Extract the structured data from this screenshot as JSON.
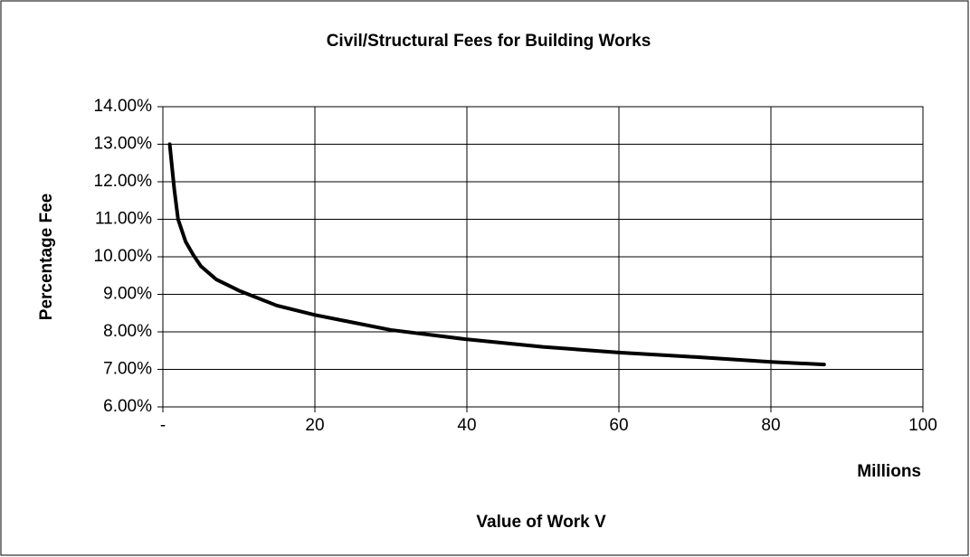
{
  "chart_data": {
    "type": "line",
    "title": "Civil/Structural Fees for Building Works",
    "xlabel": "Value of Work V",
    "xunit": "Millions",
    "ylabel": "Percentage Fee",
    "color": "#000000",
    "x": [
      0.9,
      1.5,
      2,
      3,
      4,
      5,
      7,
      10,
      15,
      20,
      25,
      30,
      40,
      50,
      60,
      70,
      80,
      87
    ],
    "values": [
      13.0,
      11.8,
      11.0,
      10.4,
      10.05,
      9.75,
      9.4,
      9.1,
      8.7,
      8.45,
      8.25,
      8.05,
      7.8,
      7.6,
      7.45,
      7.33,
      7.2,
      7.13
    ],
    "xlim": [
      0,
      100
    ],
    "xticks": [
      {
        "value": 0,
        "label": "-"
      },
      20,
      40,
      60,
      80,
      100
    ],
    "ylim": [
      6,
      14
    ],
    "yticks": [
      {
        "value": 6,
        "label": "6.00%"
      },
      {
        "value": 7,
        "label": "7.00%"
      },
      {
        "value": 8,
        "label": "8.00%"
      },
      {
        "value": 9,
        "label": "9.00%"
      },
      {
        "value": 10,
        "label": "10.00%"
      },
      {
        "value": 11,
        "label": "11.00%"
      },
      {
        "value": 12,
        "label": "12.00%"
      },
      {
        "value": 13,
        "label": "13.00%"
      },
      {
        "value": 14,
        "label": "14.00%"
      }
    ],
    "grid": true
  }
}
